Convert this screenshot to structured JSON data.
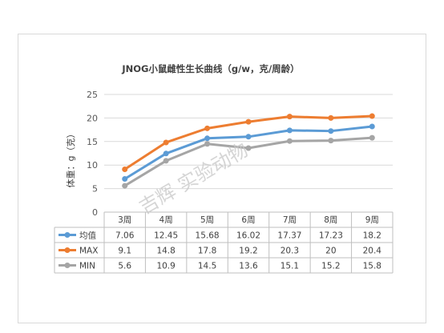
{
  "chart_data": {
    "type": "line",
    "title": "JNOG小鼠雌性生长曲线（g/w，克/周龄）",
    "ylabel": "体重：g（克）",
    "xlabel": "",
    "categories": [
      "3周",
      "4周",
      "5周",
      "6周",
      "7周",
      "8周",
      "9周"
    ],
    "ylim": [
      0,
      25
    ],
    "yticks": [
      0,
      5,
      10,
      15,
      20,
      25
    ],
    "grid": true,
    "legend": "data-table",
    "series": [
      {
        "name": "均值",
        "color": "#5b9bd5",
        "values": [
          7.06,
          12.45,
          15.68,
          16.02,
          17.37,
          17.23,
          18.2
        ]
      },
      {
        "name": "MAX",
        "color": "#ed7d31",
        "values": [
          9.1,
          14.8,
          17.8,
          19.2,
          20.3,
          20,
          20.4
        ]
      },
      {
        "name": "MIN",
        "color": "#a5a5a5",
        "values": [
          5.6,
          10.9,
          14.5,
          13.6,
          15.1,
          15.2,
          15.8
        ]
      }
    ],
    "table": [
      [
        "7.06",
        "12.45",
        "15.68",
        "16.02",
        "17.37",
        "17.23",
        "18.2"
      ],
      [
        "9.1",
        "14.8",
        "17.8",
        "19.2",
        "20.3",
        "20",
        "20.4"
      ],
      [
        "5.6",
        "10.9",
        "14.5",
        "13.6",
        "15.1",
        "15.2",
        "15.8"
      ]
    ]
  },
  "watermark": "吉辉 实验动物"
}
